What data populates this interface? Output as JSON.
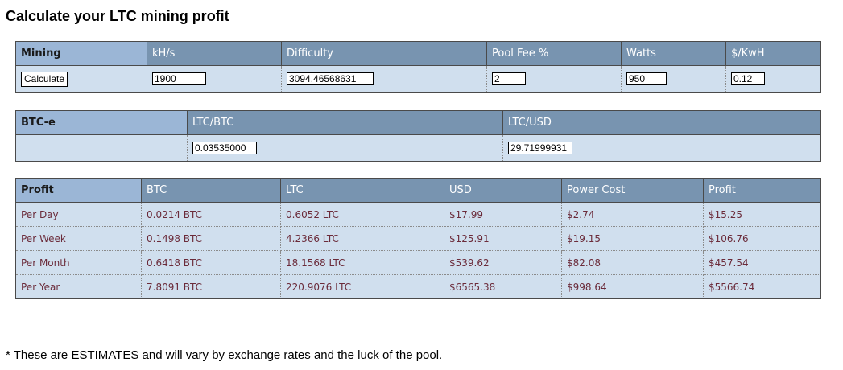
{
  "page": {
    "title": "Calculate your LTC mining profit",
    "footnote": "* These are ESTIMATES and will vary by exchange rates and the luck of the pool."
  },
  "mining": {
    "headers": {
      "mining": "Mining",
      "khs": "kH/s",
      "difficulty": "Difficulty",
      "pool_fee": "Pool Fee %",
      "watts": "Watts",
      "kwh": "$/KwH"
    },
    "calculate_label": "Calculate",
    "values": {
      "khs": "1900",
      "difficulty": "3094.46568631",
      "pool_fee": "2",
      "watts": "950",
      "kwh": "0.12"
    }
  },
  "btce": {
    "headers": {
      "exchange": "BTC-e",
      "ltc_btc": "LTC/BTC",
      "ltc_usd": "LTC/USD"
    },
    "values": {
      "ltc_btc": "0.03535000",
      "ltc_usd": "29.71999931"
    }
  },
  "profit": {
    "headers": [
      "Profit",
      "BTC",
      "LTC",
      "USD",
      "Power Cost",
      "Profit"
    ],
    "rows": [
      {
        "period": "Per Day",
        "btc": "0.0214 BTC",
        "ltc": "0.6052 LTC",
        "usd": "$17.99",
        "power": "$2.74",
        "profit": "$15.25"
      },
      {
        "period": "Per Week",
        "btc": "0.1498 BTC",
        "ltc": "4.2366 LTC",
        "usd": "$125.91",
        "power": "$19.15",
        "profit": "$106.76"
      },
      {
        "period": "Per Month",
        "btc": "0.6418 BTC",
        "ltc": "18.1568 LTC",
        "usd": "$539.62",
        "power": "$82.08",
        "profit": "$457.54"
      },
      {
        "period": "Per Year",
        "btc": "7.8091 BTC",
        "ltc": "220.9076 LTC",
        "usd": "$6565.38",
        "power": "$998.64",
        "profit": "$5566.74"
      }
    ]
  },
  "colors": {
    "header_bg": "#7894b0",
    "header_first_bg": "#9bb6d6",
    "cell_bg": "#d0dfee",
    "cell_text": "#6b2b3a"
  }
}
